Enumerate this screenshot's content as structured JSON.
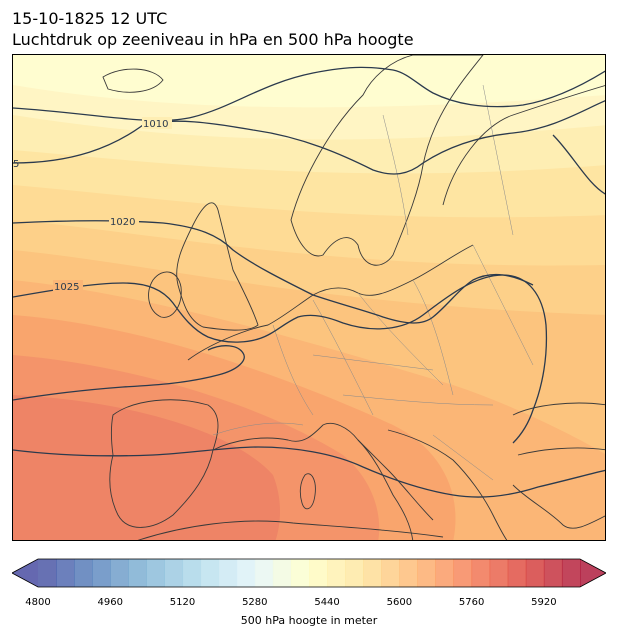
{
  "title": {
    "line1": "15-10-1825 12 UTC",
    "line2": "Luchtdruk op zeeniveau in hPa en 500 hPa hoogte"
  },
  "map": {
    "isobar_labels": [
      {
        "id": "1005",
        "text": "5"
      },
      {
        "id": "1010",
        "text": "1010"
      },
      {
        "id": "1020",
        "text": "1020"
      },
      {
        "id": "1025",
        "text": "1025"
      }
    ],
    "contour_color": "#2b3a4d",
    "coast_color": "#3a3a3a",
    "border_color": "#8a8a8a"
  },
  "colorbar": {
    "label": "500 hPa hoogte in meter",
    "min": 4800,
    "max": 6000,
    "step": 40,
    "ticks": [
      "4800",
      "4960",
      "5120",
      "5280",
      "5440",
      "5600",
      "5760",
      "5920"
    ],
    "colormap": "RdYlBu_r",
    "extend": "both"
  }
}
